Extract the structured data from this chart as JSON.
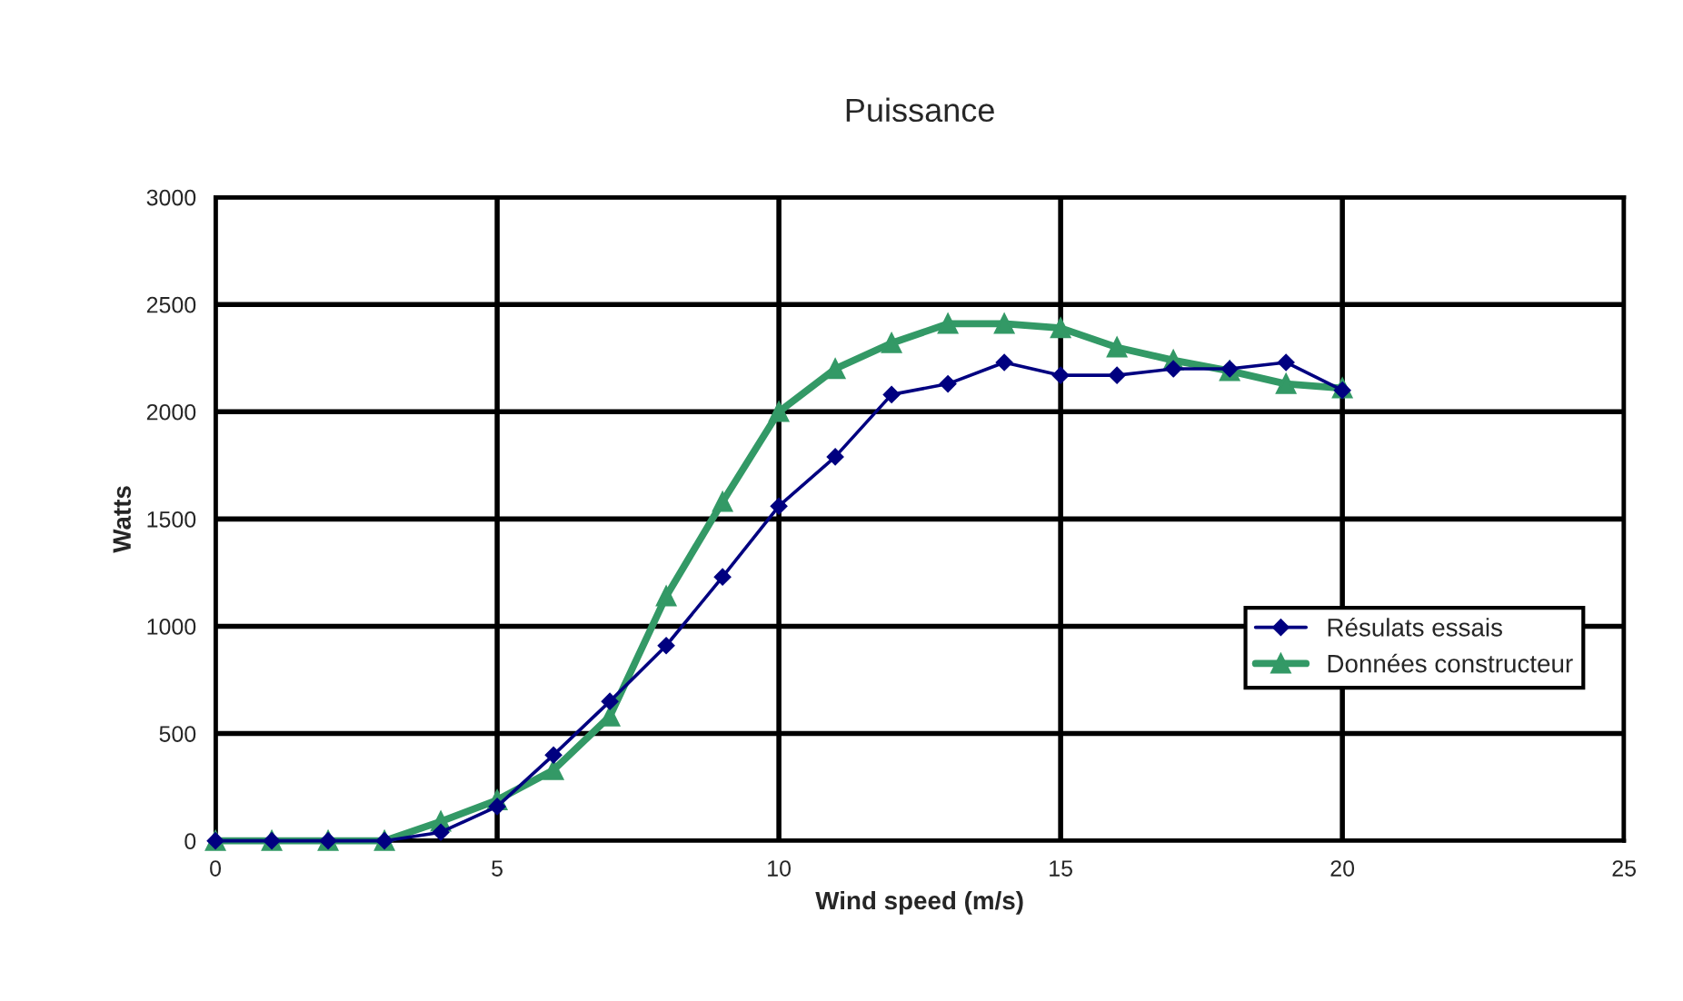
{
  "chart_data": {
    "type": "line",
    "title": "Puissance",
    "xlabel": "Wind speed (m/s)",
    "ylabel": "Watts",
    "xlim": [
      0,
      25
    ],
    "xticks": [
      0,
      5,
      10,
      15,
      20,
      25
    ],
    "ylim": [
      0,
      3000
    ],
    "yticks": [
      0,
      500,
      1000,
      1500,
      2000,
      2500,
      3000
    ],
    "grid": true,
    "legend": "right",
    "x": [
      0,
      1,
      2,
      3,
      4,
      5,
      6,
      7,
      8,
      9,
      10,
      11,
      12,
      13,
      14,
      15,
      16,
      17,
      18,
      19,
      20
    ],
    "series": [
      {
        "name": "Résulats essais",
        "color": "#000080",
        "marker": "diamond",
        "values": [
          0,
          0,
          0,
          0,
          40,
          160,
          400,
          650,
          910,
          1230,
          1560,
          1790,
          2080,
          2130,
          2230,
          2170,
          2170,
          2200,
          2200,
          2230,
          2100
        ]
      },
      {
        "name": "Données constructeur",
        "color": "#339966",
        "marker": "triangle",
        "values": [
          0,
          0,
          0,
          0,
          90,
          190,
          330,
          580,
          1140,
          1580,
          2000,
          2200,
          2320,
          2410,
          2410,
          2390,
          2300,
          2240,
          2190,
          2130,
          2110
        ]
      }
    ]
  }
}
